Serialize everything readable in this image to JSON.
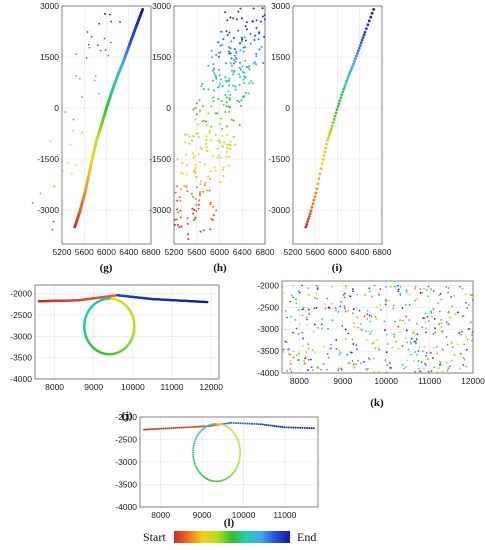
{
  "chart_data": [
    {
      "id": "g",
      "caption": "(g)",
      "type": "line",
      "xlim": [
        5200,
        6800
      ],
      "ylim": [
        -4000,
        3000
      ],
      "xticks": [
        "5200",
        "5600",
        "6000",
        "6400",
        "6800"
      ],
      "xtick_values": [
        5200,
        5600,
        6000,
        6400,
        6800
      ],
      "yticks": [
        "3000",
        "1500",
        "0",
        "-1500",
        "-3000"
      ],
      "ytick_values": [
        3000,
        1500,
        0,
        -1500,
        -3000
      ],
      "trajectory": [
        [
          5430,
          -3500
        ],
        [
          5520,
          -3050
        ],
        [
          5620,
          -2450
        ],
        [
          5730,
          -1600
        ],
        [
          5820,
          -950
        ],
        [
          5900,
          -550
        ],
        [
          6000,
          0
        ],
        [
          6100,
          500
        ],
        [
          6200,
          950
        ],
        [
          6300,
          1350
        ],
        [
          6400,
          1800
        ],
        [
          6500,
          2250
        ],
        [
          6650,
          2900
        ]
      ]
    },
    {
      "id": "h",
      "caption": "(h)",
      "type": "scatter",
      "xlim": [
        5200,
        6800
      ],
      "ylim": [
        -4000,
        3000
      ],
      "xticks": [
        "5200",
        "5600",
        "6000",
        "6400",
        "6800"
      ],
      "xtick_values": [
        5200,
        5600,
        6000,
        6400,
        6800
      ],
      "yticks": [
        "3000",
        "1500",
        "0",
        "-1500",
        "-3000"
      ],
      "ytick_values": [
        3000,
        1500,
        0,
        -1500,
        -3000
      ],
      "trajectory": [
        [
          5430,
          -3500
        ],
        [
          5620,
          -2450
        ],
        [
          5820,
          -950
        ],
        [
          6000,
          0
        ],
        [
          6200,
          950
        ],
        [
          6400,
          1800
        ],
        [
          6650,
          2900
        ]
      ]
    },
    {
      "id": "i",
      "caption": "(i)",
      "type": "scatter",
      "xlim": [
        5200,
        6800
      ],
      "ylim": [
        -4000,
        3000
      ],
      "xticks": [
        "5200",
        "5600",
        "6000",
        "6400",
        "6800"
      ],
      "xtick_values": [
        5200,
        5600,
        6000,
        6400,
        6800
      ],
      "yticks": [
        "3000",
        "1500",
        "0",
        "-1500",
        "-3000"
      ],
      "ytick_values": [
        3000,
        1500,
        0,
        -1500,
        -3000
      ],
      "trajectory": [
        [
          5430,
          -3500
        ],
        [
          5520,
          -3050
        ],
        [
          5620,
          -2450
        ],
        [
          5730,
          -1600
        ],
        [
          5820,
          -950
        ],
        [
          5900,
          -550
        ],
        [
          6000,
          0
        ],
        [
          6100,
          500
        ],
        [
          6200,
          950
        ],
        [
          6300,
          1350
        ],
        [
          6400,
          1800
        ],
        [
          6500,
          2250
        ],
        [
          6650,
          2900
        ]
      ]
    },
    {
      "id": "j",
      "caption": "(j)",
      "type": "line",
      "xlim": [
        7500,
        12200
      ],
      "ylim": [
        -4000,
        -1800
      ],
      "xticks": [
        "8000",
        "9000",
        "10000",
        "11000",
        "12000"
      ],
      "xtick_values": [
        8000,
        9000,
        10000,
        11000,
        12000
      ],
      "yticks": [
        "-2000",
        "-2500",
        "-3000",
        "-3500",
        "-4000"
      ],
      "ytick_values": [
        -2000,
        -2500,
        -3000,
        -3500,
        -4000
      ],
      "trajectory": [
        [
          7600,
          -2180
        ],
        [
          8600,
          -2160
        ],
        [
          9600,
          -2040
        ],
        [
          10500,
          -2130
        ],
        [
          11900,
          -2200
        ]
      ],
      "loop": {
        "center": [
          9400,
          -2770
        ],
        "radius_x": 640,
        "radius_y": 650
      }
    },
    {
      "id": "k",
      "caption": "(k)",
      "type": "scatter",
      "xlim": [
        7600,
        12000
      ],
      "ylim": [
        -4000,
        -1900
      ],
      "xticks": [
        "8000",
        "9000",
        "10000",
        "11000",
        "12000"
      ],
      "xtick_values": [
        8000,
        9000,
        10000,
        11000,
        12000
      ],
      "yticks": [
        "-2000",
        "-2500",
        "-3000",
        "-3500",
        "-4000"
      ],
      "ytick_values": [
        -2000,
        -2500,
        -3000,
        -3500,
        -4000
      ],
      "trajectory": [
        [
          7600,
          -2180
        ],
        [
          9600,
          -2040
        ],
        [
          11900,
          -2200
        ]
      ]
    },
    {
      "id": "l",
      "caption": "(l)",
      "type": "scatter",
      "xlim": [
        7500,
        11800
      ],
      "ylim": [
        -4000,
        -2000
      ],
      "xticks": [
        "8000",
        "9000",
        "10000",
        "11000"
      ],
      "xtick_values": [
        8000,
        9000,
        10000,
        11000
      ],
      "yticks": [
        "-2000",
        "-2500",
        "-3000",
        "-3500",
        "-4000"
      ],
      "ytick_values": [
        -2000,
        -2500,
        -3000,
        -3500,
        -4000
      ],
      "trajectory": [
        [
          7600,
          -2280
        ],
        [
          8200,
          -2250
        ],
        [
          8800,
          -2220
        ],
        [
          9200,
          -2200
        ],
        [
          9700,
          -2130
        ],
        [
          10400,
          -2160
        ],
        [
          11000,
          -2230
        ],
        [
          11700,
          -2250
        ]
      ],
      "loop": {
        "center": [
          9350,
          -2790
        ],
        "radius_x": 570,
        "radius_y": 640
      }
    }
  ],
  "colorbar": {
    "start_label": "Start",
    "end_label": "End",
    "colors": [
      "#c82a2a",
      "#f07020",
      "#f4d020",
      "#b0e020",
      "#30c030",
      "#20d0b0",
      "#40a8f0",
      "#2050e0",
      "#1a1aa0"
    ]
  }
}
